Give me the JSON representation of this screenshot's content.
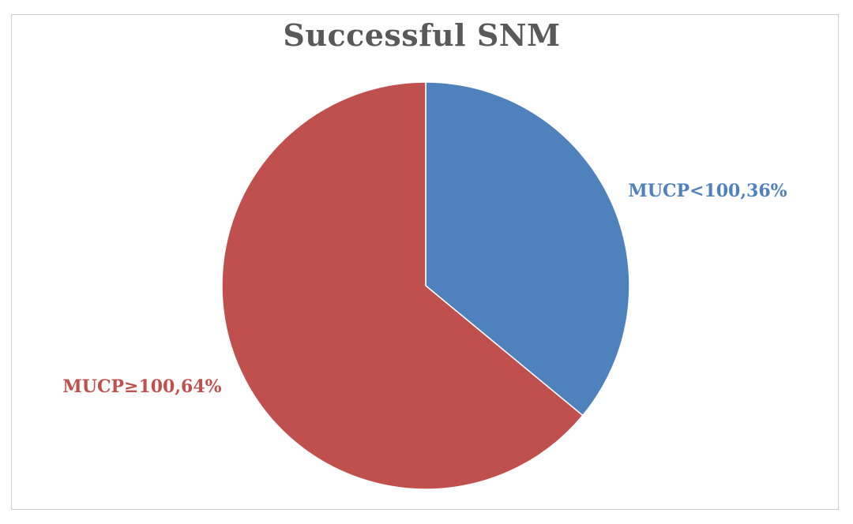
{
  "chart_data": {
    "type": "pie",
    "title": "Successful SNM",
    "slices": [
      {
        "label": "MUCP<100,36%",
        "category": "MUCP<100",
        "value": 36,
        "color": "#4f81bd"
      },
      {
        "label": "MUCP≥100,64%",
        "category": "MUCP≥100",
        "value": 64,
        "color": "#c0504d"
      }
    ],
    "start_angle": "top (12 o'clock)",
    "direction": "clockwise",
    "legend": "none",
    "data_labels": "outside"
  }
}
